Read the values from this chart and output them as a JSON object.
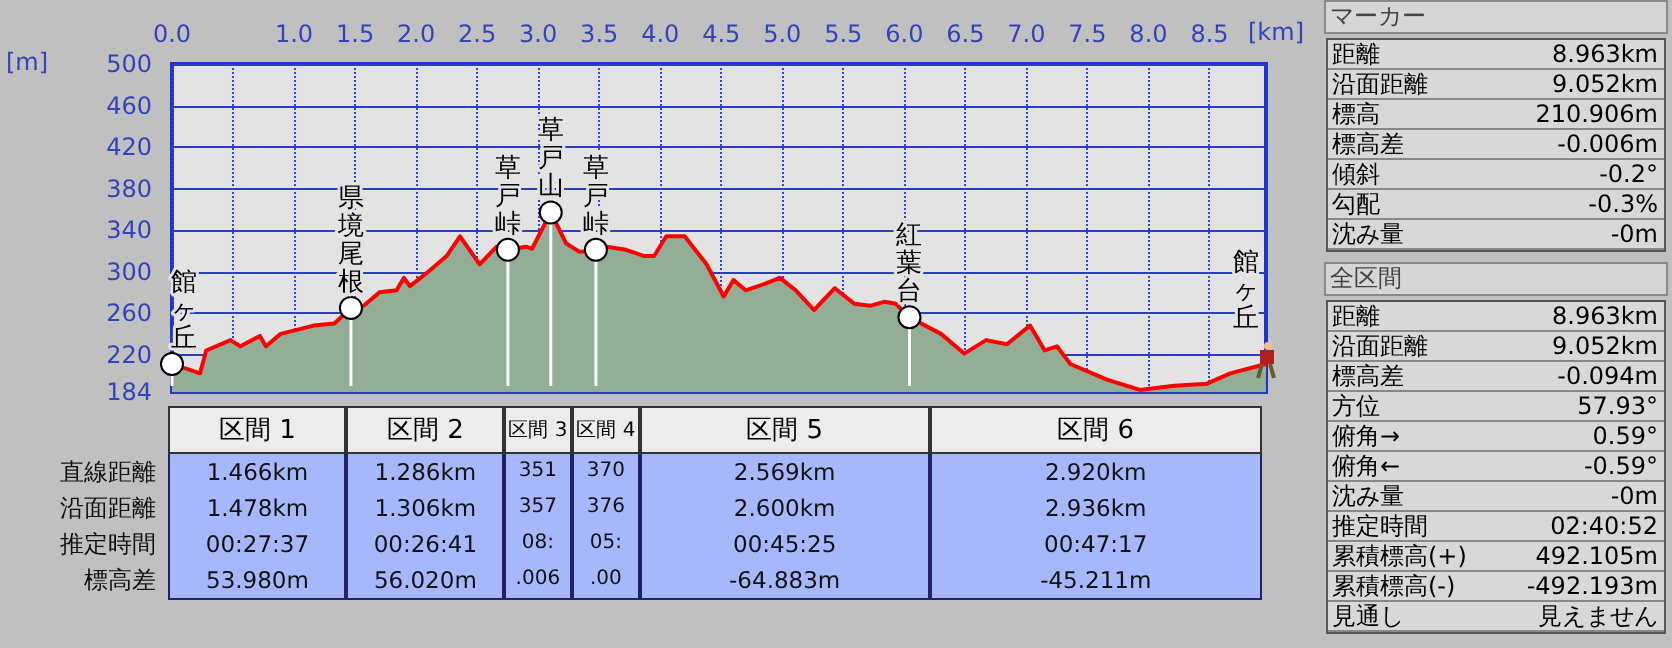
{
  "chart_data": {
    "type": "area",
    "xlabel": "[km]",
    "ylabel": "[m]",
    "x": [
      0,
      0.23,
      0.28,
      0.48,
      0.56,
      0.72,
      0.77,
      0.89,
      1.16,
      1.33,
      1.466,
      1.57,
      1.7,
      1.84,
      1.9,
      1.95,
      2.08,
      2.25,
      2.36,
      2.52,
      2.66,
      2.752,
      2.9,
      2.95,
      3.103,
      3.23,
      3.34,
      3.473,
      3.56,
      3.72,
      3.87,
      3.95,
      4.05,
      4.2,
      4.38,
      4.52,
      4.6,
      4.7,
      4.85,
      4.98,
      5.11,
      5.26,
      5.43,
      5.59,
      5.72,
      5.84,
      5.93,
      6.042,
      6.3,
      6.49,
      6.67,
      6.84,
      7.03,
      7.15,
      7.25,
      7.36,
      7.66,
      7.93,
      8.21,
      8.48,
      8.67,
      8.963
    ],
    "series": [
      {
        "color": "#ff0000",
        "values": [
          211,
          202,
          224,
          234,
          228,
          238,
          228,
          240,
          248,
          250,
          265,
          267,
          280,
          282,
          294,
          286,
          298,
          315,
          334,
          307,
          324,
          321,
          324,
          322,
          357,
          327,
          319,
          321,
          324,
          321,
          315,
          315,
          334,
          334,
          307,
          276,
          292,
          282,
          288,
          294,
          282,
          263,
          284,
          269,
          267,
          271,
          269,
          256,
          240,
          221,
          234,
          230,
          248,
          224,
          228,
          211,
          196,
          186,
          190,
          192,
          202,
          211
        ]
      }
    ],
    "xlim": [
      0,
      8.963
    ],
    "xticks": [
      {
        "value": 0,
        "label": "0.0"
      },
      {
        "value": 0.5,
        "label": null
      },
      {
        "value": 1,
        "label": "1.0"
      },
      1.5,
      {
        "value": 2,
        "label": "2.0"
      },
      2.5,
      {
        "value": 3,
        "label": "3.0"
      },
      3.5,
      {
        "value": 4,
        "label": "4.0"
      },
      4.5,
      {
        "value": 5,
        "label": "5.0"
      },
      5.5,
      {
        "value": 6,
        "label": "6.0"
      },
      6.5,
      {
        "value": 7,
        "label": "7.0"
      },
      7.5,
      {
        "value": 8,
        "label": "8.0"
      },
      8.5
    ],
    "ylim": [
      184,
      500
    ],
    "yticks": [
      184,
      220,
      260,
      300,
      340,
      380,
      420,
      460,
      500
    ],
    "grid": true,
    "marker": "none",
    "line_style": "solid",
    "annotations": [
      {
        "text": "館ヶ丘",
        "x": 0,
        "y": 211
      },
      {
        "text": "県境尾根",
        "x": 1.466,
        "y": 265
      },
      {
        "text": "草戸峠",
        "x": 2.752,
        "y": 321
      },
      {
        "text": "草戸山",
        "x": 3.103,
        "y": 357
      },
      {
        "text": "草戸峠",
        "x": 3.473,
        "y": 321
      },
      {
        "text": "紅葉台",
        "x": 6.042,
        "y": 256
      },
      {
        "text": "館ヶ丘",
        "x": 8.963,
        "y": 211
      },
      "区間 1",
      "区間 2",
      "区間 3",
      "区間 4",
      "区間 5",
      "区間 6",
      "直線距離",
      "沿面距離",
      "推定時間",
      "標高差",
      "1.466km",
      "1.286km",
      "351",
      "370",
      "2.569km",
      "2.920km",
      "1.478km",
      "1.306km",
      "357",
      "376",
      "2.600km",
      "2.936km",
      "00:27:37",
      "00:26:41",
      "08:",
      "05:",
      "00:45:25",
      "00:47:17",
      "53.980m",
      "56.020m",
      ".006",
      ".00",
      "-64.883m",
      "-45.211m",
      "マーカー",
      "距離",
      "8.963km",
      "沿面距離",
      "9.052km",
      "標高",
      "210.906m",
      "標高差",
      "-0.006m",
      "傾斜",
      "-0.2°",
      "勾配",
      "-0.3%",
      "沈み量",
      "-0m",
      "全区間",
      "距離",
      "8.963km",
      "沿面距離",
      "9.052km",
      "標高差",
      "-0.094m",
      "方位",
      "57.93°",
      "俯角→",
      "0.59°",
      "俯角←",
      "-0.59°",
      "沈み量",
      "-0m",
      "推定時間",
      "02:40:52",
      "累積標高(+)",
      "492.105m",
      "累積標高(-)",
      "-492.193m",
      "見通し",
      "見えません"
    ]
  }
}
